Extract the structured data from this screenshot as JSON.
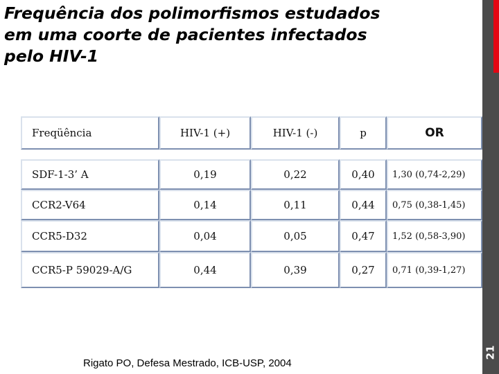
{
  "title_lines": [
    "Frequência dos polimorfismos estudados",
    "em uma coorte de pacientes infectados",
    "pelo HIV-1"
  ],
  "table": {
    "headers": [
      "Freqüência",
      "HIV-1 (+)",
      "HIV-1 (-)",
      "p",
      "OR"
    ],
    "rows": [
      [
        "SDF-1-3’ A",
        "0,19",
        "0,22",
        "0,40",
        "1,30 (0,74-2,29)"
      ],
      [
        "CCR2-V64",
        "0,14",
        "0,11",
        "0,44",
        "0,75 (0,38-1,45)"
      ],
      [
        "CCR5-D32",
        "0,04",
        "0,05",
        "0,47",
        "1,52 (0,58-3,90)"
      ],
      [
        "CCR5-P 59029-A/G",
        "0,44",
        "0,39",
        "0,27",
        "0,71 (0,39-1,27)"
      ]
    ]
  },
  "footer": "Rigato PO, Defesa Mestrado, ICB-USP, 2004",
  "page_number": "21",
  "colors": {
    "sidebar": "#4b4b4b",
    "accent": "#e30613",
    "cell_border_dark": "#7d8fb0",
    "cell_border_light": "#d9e1ec"
  }
}
